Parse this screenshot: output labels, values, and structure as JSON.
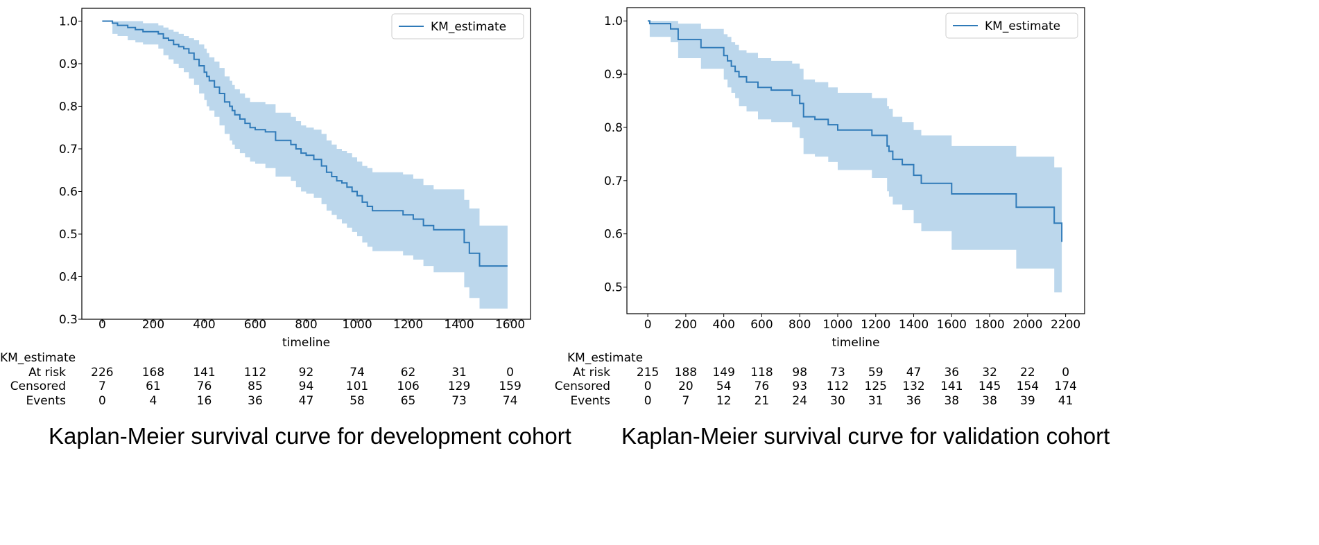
{
  "colors": {
    "line": "#2f7ab8",
    "band": "#bcd7ec",
    "frame": "#000000",
    "legend_border": "#cccccc"
  },
  "chart_data": [
    {
      "type": "line",
      "subtype": "kaplan-meier",
      "title": "Kaplan-Meier survival curve for development cohort",
      "xlabel": "timeline",
      "ylabel": "",
      "xlim": [
        -80,
        1680
      ],
      "ylim": [
        0.3,
        1.03
      ],
      "xticks": [
        0,
        200,
        400,
        600,
        800,
        1000,
        1200,
        1400,
        1600
      ],
      "xtick_labels": [
        "0",
        "200",
        "400",
        "600",
        "800",
        "1000",
        "1200",
        "1400",
        "1600"
      ],
      "yticks": [
        0.3,
        0.4,
        0.5,
        0.6,
        0.7,
        0.8,
        0.9,
        1.0
      ],
      "ytick_labels": [
        "0.3",
        "0.4",
        "0.5",
        "0.6",
        "0.7",
        "0.8",
        "0.9",
        "1.0"
      ],
      "legend": [
        "KM_estimate"
      ],
      "legend_position": "top-right",
      "series": [
        {
          "name": "KM_estimate",
          "x": [
            0,
            40,
            60,
            100,
            130,
            160,
            220,
            240,
            260,
            280,
            300,
            320,
            340,
            360,
            380,
            400,
            410,
            420,
            440,
            460,
            480,
            500,
            510,
            520,
            540,
            560,
            580,
            600,
            640,
            680,
            700,
            740,
            760,
            780,
            800,
            830,
            860,
            880,
            900,
            920,
            940,
            960,
            980,
            1000,
            1020,
            1040,
            1060,
            1100,
            1180,
            1220,
            1260,
            1300,
            1340,
            1420,
            1440,
            1480,
            1590
          ],
          "y": [
            1.0,
            0.995,
            0.99,
            0.985,
            0.98,
            0.975,
            0.97,
            0.96,
            0.955,
            0.945,
            0.94,
            0.935,
            0.925,
            0.91,
            0.895,
            0.88,
            0.87,
            0.86,
            0.845,
            0.83,
            0.81,
            0.8,
            0.79,
            0.78,
            0.77,
            0.76,
            0.75,
            0.745,
            0.74,
            0.72,
            0.72,
            0.71,
            0.7,
            0.69,
            0.685,
            0.675,
            0.66,
            0.645,
            0.635,
            0.625,
            0.62,
            0.61,
            0.6,
            0.59,
            0.575,
            0.565,
            0.555,
            0.555,
            0.545,
            0.535,
            0.52,
            0.51,
            0.51,
            0.48,
            0.455,
            0.425,
            0.425
          ],
          "ci_lower": [
            1.0,
            0.97,
            0.965,
            0.955,
            0.95,
            0.945,
            0.935,
            0.92,
            0.91,
            0.9,
            0.89,
            0.88,
            0.865,
            0.85,
            0.83,
            0.815,
            0.8,
            0.79,
            0.775,
            0.755,
            0.735,
            0.72,
            0.71,
            0.7,
            0.69,
            0.68,
            0.67,
            0.665,
            0.655,
            0.635,
            0.635,
            0.625,
            0.61,
            0.6,
            0.595,
            0.585,
            0.57,
            0.555,
            0.545,
            0.535,
            0.525,
            0.515,
            0.505,
            0.495,
            0.48,
            0.47,
            0.46,
            0.46,
            0.45,
            0.44,
            0.425,
            0.41,
            0.41,
            0.375,
            0.35,
            0.325,
            0.325
          ],
          "ci_upper": [
            1.0,
            1.0,
            1.0,
            1.0,
            1.0,
            0.995,
            0.99,
            0.985,
            0.98,
            0.975,
            0.97,
            0.965,
            0.96,
            0.955,
            0.945,
            0.935,
            0.925,
            0.915,
            0.905,
            0.89,
            0.87,
            0.86,
            0.85,
            0.84,
            0.83,
            0.82,
            0.81,
            0.81,
            0.805,
            0.785,
            0.785,
            0.775,
            0.765,
            0.755,
            0.75,
            0.745,
            0.735,
            0.72,
            0.71,
            0.7,
            0.695,
            0.69,
            0.68,
            0.67,
            0.66,
            0.655,
            0.645,
            0.645,
            0.64,
            0.63,
            0.615,
            0.605,
            0.605,
            0.58,
            0.56,
            0.52,
            0.52
          ]
        }
      ],
      "risk_table": {
        "header": "KM_estimate",
        "rows": [
          {
            "label": "At risk",
            "values": [
              "226",
              "168",
              "141",
              "112",
              "92",
              "74",
              "62",
              "31",
              "0"
            ]
          },
          {
            "label": "Censored",
            "values": [
              "7",
              "61",
              "76",
              "85",
              "94",
              "101",
              "106",
              "129",
              "159"
            ]
          },
          {
            "label": "Events",
            "values": [
              "0",
              "4",
              "16",
              "36",
              "47",
              "58",
              "65",
              "73",
              "74"
            ]
          }
        ]
      }
    },
    {
      "type": "line",
      "subtype": "kaplan-meier",
      "title": "Kaplan-Meier survival curve for validation cohort",
      "xlabel": "timeline",
      "ylabel": "",
      "xlim": [
        -110,
        2300
      ],
      "ylim": [
        0.45,
        1.025
      ],
      "xticks": [
        0,
        200,
        400,
        600,
        800,
        1000,
        1200,
        1400,
        1600,
        1800,
        2000,
        2200
      ],
      "xtick_labels": [
        "0",
        "200",
        "400",
        "600",
        "800",
        "1000",
        "1200",
        "1400",
        "1600",
        "1800",
        "2000",
        "2200"
      ],
      "yticks": [
        0.5,
        0.6,
        0.7,
        0.8,
        0.9,
        1.0
      ],
      "ytick_labels": [
        "0.5",
        "0.6",
        "0.7",
        "0.8",
        "0.9",
        "1.0"
      ],
      "legend": [
        "KM_estimate"
      ],
      "legend_position": "top-right",
      "series": [
        {
          "name": "KM_estimate",
          "x": [
            0,
            10,
            120,
            160,
            280,
            400,
            420,
            440,
            460,
            480,
            520,
            580,
            650,
            760,
            800,
            820,
            880,
            950,
            1000,
            1100,
            1180,
            1260,
            1270,
            1290,
            1340,
            1400,
            1440,
            1600,
            1940,
            2140,
            2180
          ],
          "y": [
            1.0,
            0.995,
            0.985,
            0.965,
            0.95,
            0.935,
            0.925,
            0.915,
            0.905,
            0.895,
            0.885,
            0.875,
            0.87,
            0.86,
            0.845,
            0.82,
            0.815,
            0.805,
            0.795,
            0.795,
            0.785,
            0.765,
            0.755,
            0.74,
            0.73,
            0.71,
            0.695,
            0.675,
            0.65,
            0.62,
            0.585
          ],
          "ci_lower": [
            1.0,
            0.97,
            0.96,
            0.93,
            0.91,
            0.89,
            0.875,
            0.865,
            0.855,
            0.84,
            0.83,
            0.815,
            0.81,
            0.8,
            0.78,
            0.75,
            0.745,
            0.735,
            0.72,
            0.72,
            0.705,
            0.68,
            0.67,
            0.655,
            0.645,
            0.62,
            0.605,
            0.57,
            0.535,
            0.49,
            0.45
          ],
          "ci_upper": [
            1.0,
            1.0,
            1.0,
            0.995,
            0.985,
            0.975,
            0.97,
            0.96,
            0.955,
            0.945,
            0.94,
            0.93,
            0.925,
            0.92,
            0.91,
            0.89,
            0.885,
            0.875,
            0.865,
            0.865,
            0.855,
            0.84,
            0.835,
            0.82,
            0.81,
            0.795,
            0.785,
            0.765,
            0.745,
            0.725,
            0.7
          ]
        }
      ],
      "risk_table": {
        "header": "KM_estimate",
        "rows": [
          {
            "label": "At risk",
            "values": [
              "215",
              "188",
              "149",
              "118",
              "98",
              "73",
              "59",
              "47",
              "36",
              "32",
              "22",
              "0"
            ]
          },
          {
            "label": "Censored",
            "values": [
              "0",
              "20",
              "54",
              "76",
              "93",
              "112",
              "125",
              "132",
              "141",
              "145",
              "154",
              "174"
            ]
          },
          {
            "label": "Events",
            "values": [
              "0",
              "7",
              "12",
              "21",
              "24",
              "30",
              "31",
              "36",
              "38",
              "38",
              "39",
              "41"
            ]
          }
        ]
      }
    }
  ]
}
